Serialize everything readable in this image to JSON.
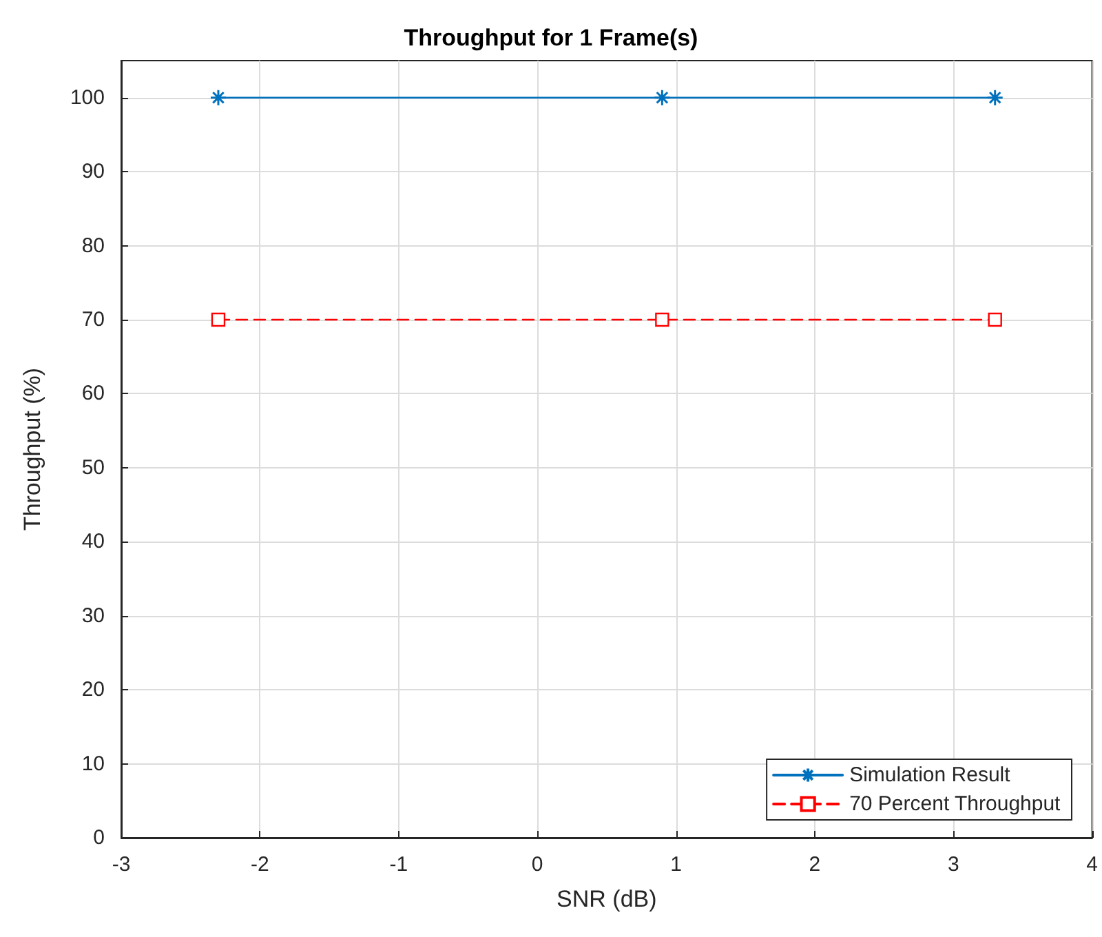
{
  "chart_data": {
    "type": "line",
    "title": "Throughput for 1 Frame(s)",
    "xlabel": "SNR (dB)",
    "ylabel": "Throughput (%)",
    "x": [
      -2.3,
      0.9,
      3.3
    ],
    "series": [
      {
        "name": "Simulation Result",
        "color": "#0072bd",
        "values": [
          100,
          100,
          100
        ],
        "marker": "cross",
        "line_style": "solid"
      },
      {
        "name": "70 Percent Throughput",
        "color": "#ff0000",
        "values": [
          70,
          70,
          70
        ],
        "marker": "square",
        "line_style": "dashed"
      }
    ],
    "xlim": [
      -3,
      4
    ],
    "xticks": [
      -3,
      -2,
      -1,
      0,
      1,
      2,
      3,
      4
    ],
    "ylim": [
      0,
      105
    ],
    "yticks": [
      0,
      10,
      20,
      30,
      40,
      50,
      60,
      70,
      80,
      90,
      100
    ],
    "grid": true,
    "legend": "bottom right"
  }
}
